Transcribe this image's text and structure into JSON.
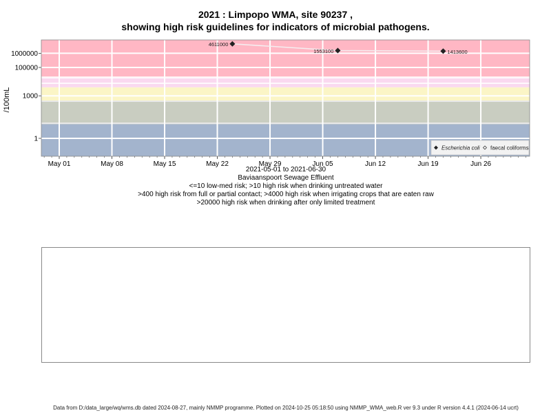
{
  "chart_data": {
    "type": "scatter",
    "title": "2021 : Limpopo WMA, site 90237 ,",
    "subtitle": "showing high risk guidelines for indicators of microbial pathogens.",
    "ylabel": "/100mL",
    "y_scale": "log",
    "y_ticks": [
      {
        "value": 1,
        "label": "1"
      },
      {
        "value": 1000,
        "label": "1000"
      },
      {
        "value": 100000,
        "label": "100000"
      },
      {
        "value": 1000000,
        "label": "1000000"
      }
    ],
    "x_ticks": [
      {
        "date": "2021-05-01",
        "label": "May 01"
      },
      {
        "date": "2021-05-08",
        "label": "May 08"
      },
      {
        "date": "2021-05-15",
        "label": "May 15"
      },
      {
        "date": "2021-05-22",
        "label": "May 22"
      },
      {
        "date": "2021-05-29",
        "label": "May 29"
      },
      {
        "date": "2021-06-05",
        "label": "Jun 05"
      },
      {
        "date": "2021-06-12",
        "label": "Jun 12"
      },
      {
        "date": "2021-06-19",
        "label": "Jun 19"
      },
      {
        "date": "2021-06-26",
        "label": "Jun 26"
      }
    ],
    "bands": [
      {
        "upper": 10,
        "color": "#a3b4cd"
      },
      {
        "upper": 400,
        "color": "#c9cdc1"
      },
      {
        "upper": 4000,
        "color": "#fbf5c6"
      },
      {
        "upper": 20000,
        "color": "#fad9f0"
      },
      {
        "upper": 10000000.0,
        "color": "#ffb7c4"
      }
    ],
    "series": [
      {
        "name": "Escherichia coli",
        "marker": "filled-diamond",
        "color": "#222222",
        "points": [
          {
            "x": "2021-05-24",
            "y": 4611000,
            "label": "4611000"
          },
          {
            "x": "2021-06-07",
            "y": 1553100,
            "label": "1553100"
          },
          {
            "x": "2021-06-21",
            "y": 1413600,
            "label": "1413600"
          }
        ]
      },
      {
        "name": "faecal coliforms",
        "marker": "open-diamond",
        "color": "#222222",
        "points": []
      }
    ],
    "legend_position": "bottom-right",
    "info_lines": [
      "2021-05-01 to 2021-06-30",
      "Baviaanspoort Sewage Effluent",
      "<=10 low-med risk; >10 high risk when drinking untreated water",
      ">400 high risk from full or partial contact; >4000 high risk when irrigating crops that are eaten raw",
      ">20000 high risk when drinking after only limited treatment"
    ]
  },
  "footer": "Data from D:/data_large/wq/wms.db dated 2024-08-27, mainly NMMP programme. Plotted on 2024-10-25 05:18:50 using NMMP_WMA_web.R ver 9.3 under R version 4.4.1 (2024-06-14 ucrt)"
}
